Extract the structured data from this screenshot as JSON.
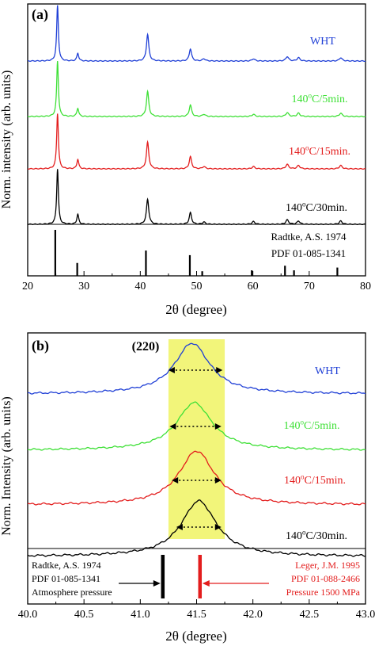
{
  "chart_data": [
    {
      "type": "line",
      "panel_label": "(a)",
      "xlabel": "2θ (degree)",
      "ylabel": "Norm. intensity (arb. units)",
      "xlim": [
        20,
        80
      ],
      "xticks": [
        20,
        30,
        40,
        50,
        60,
        70,
        80
      ],
      "peaks_2theta": [
        25.3,
        28.9,
        41.3,
        48.9,
        51.3,
        60.1,
        66.1,
        68.1,
        75.6
      ],
      "series": [
        {
          "name": "WHT",
          "color": "#1f3fd6",
          "peak_heights": [
            1.0,
            0.14,
            0.48,
            0.22,
            0.04,
            0.04,
            0.08,
            0.06,
            0.06
          ]
        },
        {
          "name": "140°C/5min.",
          "color": "#3ee036",
          "peak_heights": [
            1.0,
            0.15,
            0.45,
            0.21,
            0.04,
            0.04,
            0.07,
            0.06,
            0.06
          ]
        },
        {
          "name": "140°C/15min.",
          "color": "#e31d1d",
          "peak_heights": [
            1.0,
            0.17,
            0.48,
            0.22,
            0.04,
            0.04,
            0.08,
            0.06,
            0.06
          ]
        },
        {
          "name": "140°C/30min.",
          "color": "#000000",
          "peak_heights": [
            1.0,
            0.18,
            0.45,
            0.21,
            0.04,
            0.05,
            0.08,
            0.06,
            0.06
          ]
        }
      ],
      "reference": {
        "line1": "Radtke, A.S. 1974",
        "line2": "PDF 01-085-1341",
        "sticks_2theta": [
          24.9,
          28.8,
          41.0,
          48.8,
          51.0,
          59.8,
          65.7,
          67.3,
          75.0
        ],
        "sticks_intensity": [
          1.0,
          0.28,
          0.55,
          0.45,
          0.1,
          0.12,
          0.22,
          0.12,
          0.18
        ]
      }
    },
    {
      "type": "line",
      "panel_label": "(b)",
      "annotation": "(220)",
      "xlabel": "2θ (degree)",
      "ylabel": "Norm. Intensity (arb. units)",
      "xlim": [
        40.0,
        43.0
      ],
      "xticks": [
        "40.0",
        "40.5",
        "41.0",
        "41.5",
        "42.0",
        "42.5",
        "43.0"
      ],
      "highlight_range": [
        41.25,
        41.75
      ],
      "highlight_color": "#f2f57a",
      "series": [
        {
          "name": "WHT",
          "color": "#1f3fd6",
          "center": 41.46,
          "fwhm_arrow": [
            41.25,
            41.73
          ]
        },
        {
          "name": "140°C/5min.",
          "color": "#3ee036",
          "center": 41.48,
          "fwhm_arrow": [
            41.26,
            41.72
          ]
        },
        {
          "name": "140°C/15min.",
          "color": "#e31d1d",
          "center": 41.5,
          "fwhm_arrow": [
            41.28,
            41.72
          ]
        },
        {
          "name": "140°C/30min.",
          "color": "#000000",
          "center": 41.52,
          "fwhm_arrow": [
            41.32,
            41.72
          ]
        }
      ],
      "reference_left": {
        "line1": "Radtke, A.S. 1974",
        "line2": "PDF 01-085-1341",
        "line3": "Atmosphere pressure",
        "stick_2theta": 41.2,
        "color": "#000000"
      },
      "reference_right": {
        "line1": "Leger, J.M. 1995",
        "line2": "PDF 01-088-2466",
        "line3": "Pressure 1500 MPa",
        "stick_2theta": 41.53,
        "color": "#e31d1d"
      }
    }
  ]
}
